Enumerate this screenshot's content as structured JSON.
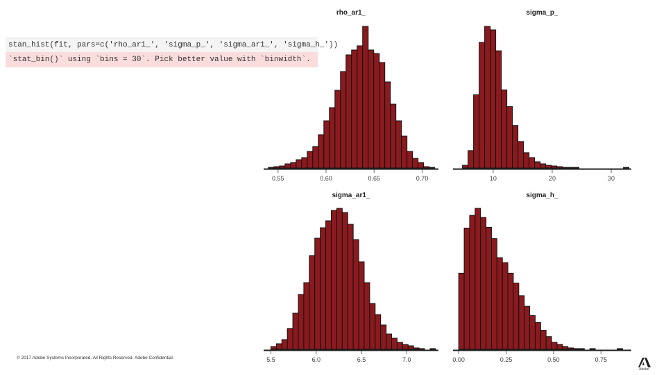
{
  "code": {
    "line": "stan_hist(fit, pars=c('rho_ar1_', 'sigma_p_', 'sigma_ar1_', 'sigma_h_'))",
    "warning": "`stat_bin()` using `bins = 30`. Pick better value with `binwidth`."
  },
  "footer": {
    "text": "© 2017 Adobe Systems Incorporated. All Rights Reserved. Adobe Confidential.",
    "logo_text": "Adobe"
  },
  "colors": {
    "bar_fill": "#8b1a1f",
    "bar_stroke": "#111111",
    "axis": "#222222"
  },
  "chart_data": [
    {
      "type": "bar",
      "title": "rho_ar1_",
      "xlim": [
        0.535,
        0.717
      ],
      "ticks": [
        0.55,
        0.6,
        0.65,
        0.7
      ],
      "tick_labels": [
        "0.55",
        "0.60",
        "0.65",
        "0.70"
      ],
      "bin_start": 0.54,
      "bin_width": 0.00577,
      "counts": [
        1,
        2,
        3,
        6,
        8,
        12,
        15,
        24,
        31,
        48,
        68,
        87,
        112,
        139,
        163,
        170,
        176,
        204,
        170,
        165,
        152,
        124,
        92,
        68,
        46,
        24,
        14,
        8,
        2,
        1
      ]
    },
    {
      "type": "bar",
      "title": "sigma_p_",
      "xlim": [
        3.2,
        33.4
      ],
      "ticks": [
        10,
        20,
        30
      ],
      "tick_labels": [
        "10",
        "20",
        "30"
      ],
      "bin_start": 4.8,
      "bin_width": 0.94,
      "counts": [
        4,
        25,
        105,
        180,
        203,
        198,
        168,
        112,
        88,
        61,
        38,
        22,
        15,
        9,
        6,
        4,
        3,
        2,
        1,
        1,
        1,
        0,
        0,
        0,
        0,
        0,
        0,
        0,
        0,
        1
      ]
    },
    {
      "type": "bar",
      "title": "sigma_ar1_",
      "xlim": [
        5.42,
        7.35
      ],
      "ticks": [
        5.5,
        6.0,
        6.5,
        7.0
      ],
      "tick_labels": [
        "5.5",
        "6.0",
        "6.5",
        "7.0"
      ],
      "bin_start": 5.5,
      "bin_width": 0.0606,
      "counts": [
        4,
        8,
        14,
        30,
        52,
        79,
        96,
        135,
        160,
        175,
        185,
        200,
        203,
        197,
        180,
        158,
        126,
        96,
        66,
        50,
        35,
        22,
        16,
        10,
        7,
        5,
        2,
        1,
        0,
        1
      ]
    },
    {
      "type": "bar",
      "title": "sigma_h_",
      "xlim": [
        -0.03,
        0.91
      ],
      "ticks": [
        0.0,
        0.25,
        0.5,
        0.75
      ],
      "tick_labels": [
        "0.00",
        "0.25",
        "0.50",
        "0.75"
      ],
      "bin_start": 0.0,
      "bin_width": 0.0288,
      "counts": [
        108,
        172,
        190,
        200,
        187,
        173,
        157,
        130,
        123,
        108,
        94,
        76,
        61,
        48,
        38,
        27,
        18,
        10,
        7,
        4,
        2,
        1,
        1,
        0,
        1,
        0,
        0,
        0,
        0,
        1
      ]
    }
  ]
}
